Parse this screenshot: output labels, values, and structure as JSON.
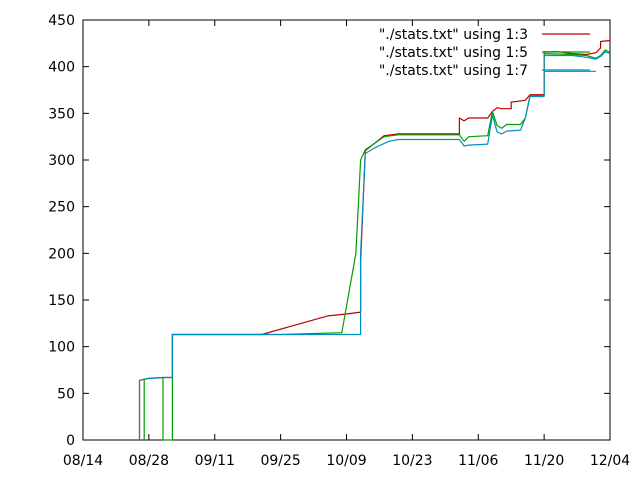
{
  "chart_data": {
    "type": "line",
    "title": "",
    "xlabel": "",
    "ylabel": "",
    "xlim": [
      "08/14",
      "12/04"
    ],
    "ylim": [
      0,
      450
    ],
    "grid": false,
    "legend_position": "top-right",
    "x_ticks": [
      "08/14",
      "08/28",
      "09/11",
      "09/25",
      "10/09",
      "10/23",
      "11/06",
      "11/20",
      "12/04"
    ],
    "y_ticks": [
      0,
      50,
      100,
      150,
      200,
      250,
      300,
      350,
      400,
      450
    ],
    "series": [
      {
        "name": "\"./stats.txt\" using 1:3",
        "color": "#c00000",
        "points": [
          [
            "08/26",
            0
          ],
          [
            "08/26",
            64
          ],
          [
            "08/27",
            65
          ],
          [
            "08/28",
            66
          ],
          [
            "08/31",
            67
          ],
          [
            "09/02",
            67
          ],
          [
            "09/02",
            113
          ],
          [
            "09/05",
            113
          ],
          [
            "09/11",
            113
          ],
          [
            "09/21",
            113
          ],
          [
            "09/28",
            123
          ],
          [
            "10/05",
            133
          ],
          [
            "10/09",
            135
          ],
          [
            "10/12",
            137
          ],
          [
            "10/12",
            190
          ],
          [
            "10/13",
            310
          ],
          [
            "10/15",
            318
          ],
          [
            "10/17",
            326
          ],
          [
            "10/20",
            328
          ],
          [
            "11/02",
            328
          ],
          [
            "11/02",
            345
          ],
          [
            "11/03",
            342
          ],
          [
            "11/04",
            345
          ],
          [
            "11/08",
            345
          ],
          [
            "11/09",
            352
          ],
          [
            "11/10",
            356
          ],
          [
            "11/11",
            355
          ],
          [
            "11/13",
            355
          ],
          [
            "11/13",
            362
          ],
          [
            "11/16",
            364
          ],
          [
            "11/17",
            370
          ],
          [
            "11/20",
            370
          ],
          [
            "11/20",
            416
          ],
          [
            "11/23",
            416
          ],
          [
            "11/26",
            414
          ],
          [
            "11/29",
            413
          ],
          [
            "12/01",
            415
          ],
          [
            "12/02",
            420
          ],
          [
            "12/02",
            427
          ],
          [
            "12/04",
            428
          ]
        ]
      },
      {
        "name": "\"./stats.txt\" using 1:5",
        "color": "#00a000",
        "points": [
          [
            "08/27",
            0
          ],
          [
            "08/27",
            65
          ],
          [
            "08/28",
            66
          ],
          [
            "08/31",
            67
          ],
          [
            "08/31",
            0
          ],
          [
            "09/02",
            0
          ],
          [
            "09/02",
            113
          ],
          [
            "09/05",
            113
          ],
          [
            "09/25",
            113
          ],
          [
            "10/08",
            115
          ],
          [
            "10/11",
            200
          ],
          [
            "10/12",
            300
          ],
          [
            "10/13",
            311
          ],
          [
            "10/15",
            318
          ],
          [
            "10/17",
            325
          ],
          [
            "10/20",
            327
          ],
          [
            "11/02",
            327
          ],
          [
            "11/03",
            320
          ],
          [
            "11/04",
            325
          ],
          [
            "11/08",
            326
          ],
          [
            "11/09",
            352
          ],
          [
            "11/10",
            337
          ],
          [
            "11/11",
            334
          ],
          [
            "11/12",
            338
          ],
          [
            "11/15",
            338
          ],
          [
            "11/16",
            345
          ],
          [
            "11/17",
            369
          ],
          [
            "11/20",
            369
          ],
          [
            "11/20",
            414
          ],
          [
            "11/26",
            413
          ],
          [
            "11/29",
            412
          ],
          [
            "12/01",
            409
          ],
          [
            "12/02",
            412
          ],
          [
            "12/03",
            418
          ],
          [
            "12/04",
            415
          ]
        ]
      },
      {
        "name": "\"./stats.txt\" using 1:7",
        "color": "#0090c0",
        "points": [
          [
            "08/26",
            0
          ],
          [
            "08/26",
            64
          ],
          [
            "08/28",
            66
          ],
          [
            "08/31",
            67
          ],
          [
            "09/02",
            67
          ],
          [
            "09/02",
            113
          ],
          [
            "09/05",
            113
          ],
          [
            "10/12",
            113
          ],
          [
            "10/12",
            200
          ],
          [
            "10/13",
            307
          ],
          [
            "10/15",
            313
          ],
          [
            "10/18",
            320
          ],
          [
            "10/20",
            322
          ],
          [
            "11/02",
            322
          ],
          [
            "11/03",
            315
          ],
          [
            "11/04",
            316
          ],
          [
            "11/08",
            317
          ],
          [
            "11/09",
            348
          ],
          [
            "11/10",
            330
          ],
          [
            "11/11",
            328
          ],
          [
            "11/12",
            331
          ],
          [
            "11/15",
            332
          ],
          [
            "11/16",
            345
          ],
          [
            "11/17",
            368
          ],
          [
            "11/20",
            368
          ],
          [
            "11/20",
            412
          ],
          [
            "11/26",
            412
          ],
          [
            "11/29",
            410
          ],
          [
            "12/01",
            408
          ],
          [
            "12/02",
            411
          ],
          [
            "12/03",
            416
          ],
          [
            "12/04",
            414
          ],
          [
            "11/20",
            395
          ],
          [
            "12/01",
            395
          ]
        ]
      }
    ]
  }
}
